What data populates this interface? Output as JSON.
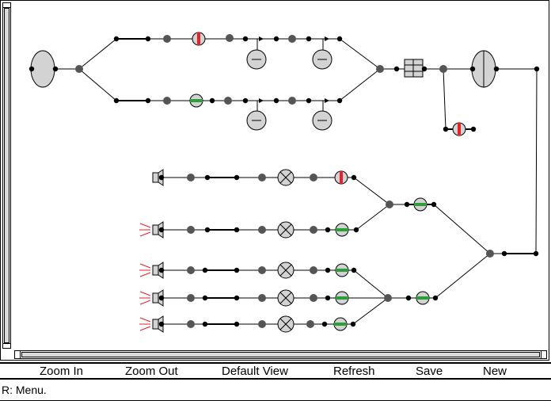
{
  "menu": {
    "zoom_in": "Zoom In",
    "zoom_out": "Zoom Out",
    "default_view": "Default View",
    "refresh": "Refresh",
    "save": "Save",
    "new": "New"
  },
  "status": {
    "text": "R: Menu."
  },
  "colors": {
    "node_fill": "#555555",
    "component_fill": "#d3d3d3",
    "closed_valve_mark": "#e8202a",
    "open_valve_mark": "#2e9e3a",
    "speaker_lines": "#e8202a"
  }
}
